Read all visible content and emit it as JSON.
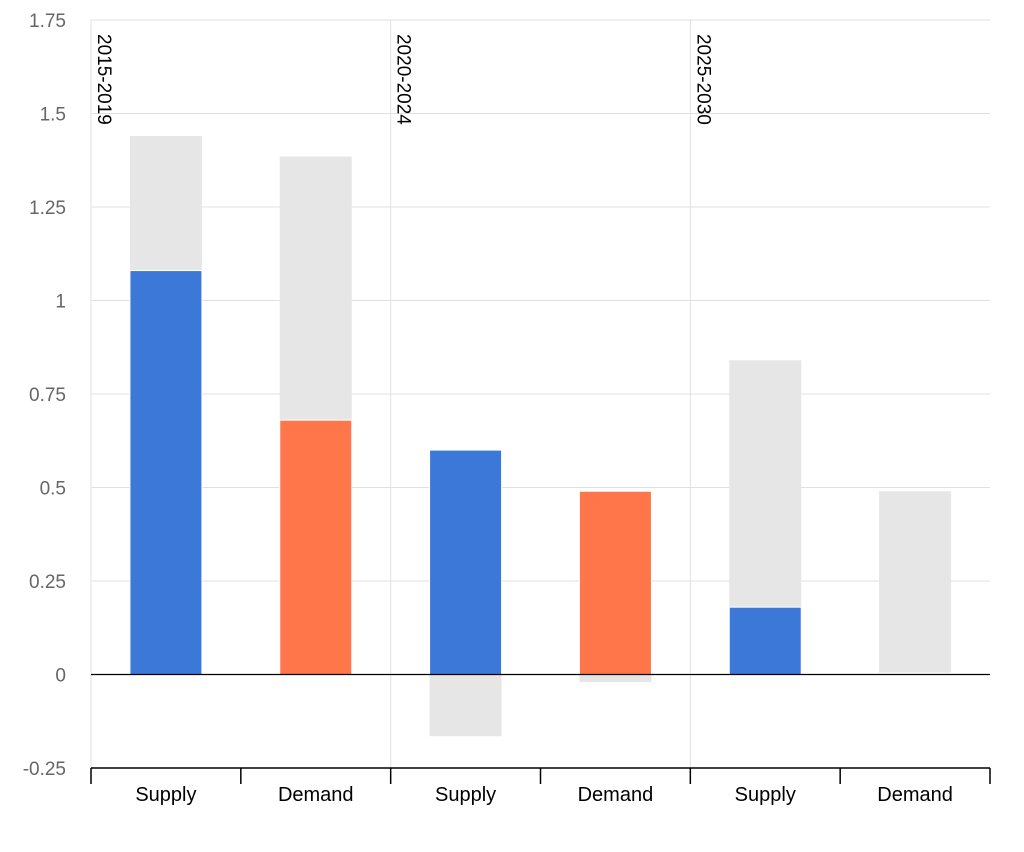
{
  "chart_data": {
    "type": "bar",
    "title": "",
    "xlabel": "",
    "ylabel": "",
    "ylim": [
      -0.25,
      1.75
    ],
    "yticks": [
      "1.75",
      "1.5",
      "1.25",
      "1",
      "0.75",
      "0.5",
      "0.25",
      "0",
      "-0.25"
    ],
    "periods": [
      "2015-2019",
      "2020-2024",
      "2025-2030"
    ],
    "categories": [
      "Supply",
      "Demand",
      "Supply",
      "Demand",
      "Supply",
      "Demand"
    ],
    "grid": true,
    "bars": [
      {
        "period": "2015-2019",
        "category": "Supply",
        "value": 1.08,
        "range": [
          0,
          1.44
        ],
        "color": "#3c78d8"
      },
      {
        "period": "2015-2019",
        "category": "Demand",
        "value": 0.68,
        "range": [
          0,
          1.385
        ],
        "color": "#ff764a"
      },
      {
        "period": "2020-2024",
        "category": "Supply",
        "value": 0.6,
        "range": [
          -0.165,
          0
        ],
        "color": "#3c78d8"
      },
      {
        "period": "2020-2024",
        "category": "Demand",
        "value": 0.49,
        "range": [
          -0.02,
          0
        ],
        "color": "#ff764a"
      },
      {
        "period": "2025-2030",
        "category": "Supply",
        "value": 0.18,
        "range": [
          0,
          0.84
        ],
        "color": "#3c78d8"
      },
      {
        "period": "2025-2030",
        "category": "Demand",
        "value": 0.0,
        "range": [
          0.005,
          0.49
        ],
        "color": "#ff764a"
      }
    ],
    "range_color": "#e6e6e6",
    "gridline_color": "#e0e0e0",
    "zero_line_color": "#000000"
  }
}
